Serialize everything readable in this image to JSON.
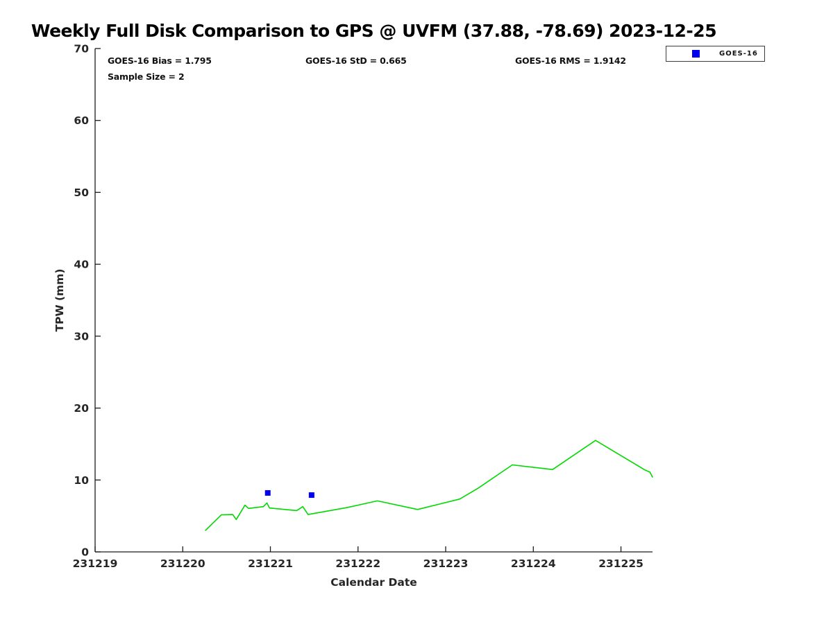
{
  "title": "Weekly Full Disk Comparison to GPS @ UVFM (37.88, -78.69) 2023-12-25",
  "stats": {
    "bias": "GOES-16 Bias = 1.795",
    "std": "GOES-16 StD = 0.665",
    "rms": "GOES-16 RMS = 1.9142",
    "sample_size": "Sample Size = 2"
  },
  "legend": {
    "position": "top-right",
    "entries": [
      {
        "label": "GOES-16",
        "marker": "square",
        "color": "#0000EE"
      }
    ]
  },
  "chart_data": {
    "type": "line",
    "title": "Weekly Full Disk Comparison to GPS @ UVFM (37.88, -78.69) 2023-12-25",
    "xlabel": "Calendar Date",
    "ylabel": "TPW (mm)",
    "xlim": [
      231219,
      231225.36
    ],
    "ylim": [
      0,
      70
    ],
    "xticks": [
      231219,
      231220,
      231221,
      231222,
      231223,
      231224,
      231225
    ],
    "yticks": [
      0,
      10,
      20,
      30,
      40,
      50,
      60,
      70
    ],
    "grid": false,
    "annotations": [
      "GOES-16 Bias = 1.795",
      "GOES-16 StD = 0.665",
      "GOES-16 RMS = 1.9142",
      "Sample Size = 2"
    ],
    "series": [
      {
        "name": "GPS",
        "type": "line",
        "color": "#00D900",
        "points": [
          [
            231220.26,
            3.0
          ],
          [
            231220.44,
            5.15
          ],
          [
            231220.57,
            5.2
          ],
          [
            231220.61,
            4.5
          ],
          [
            231220.71,
            6.5
          ],
          [
            231220.75,
            6.05
          ],
          [
            231220.92,
            6.3
          ],
          [
            231220.96,
            6.8
          ],
          [
            231220.99,
            6.1
          ],
          [
            231221.3,
            5.75
          ],
          [
            231221.37,
            6.3
          ],
          [
            231221.43,
            5.2
          ],
          [
            231221.87,
            6.15
          ],
          [
            231222.22,
            7.1
          ],
          [
            231222.68,
            5.9
          ],
          [
            231223.16,
            7.35
          ],
          [
            231223.37,
            8.85
          ],
          [
            231223.73,
            11.85
          ],
          [
            231223.76,
            12.1
          ],
          [
            231224.22,
            11.45
          ],
          [
            231224.71,
            15.5
          ],
          [
            231225.28,
            11.35
          ],
          [
            231225.33,
            11.1
          ],
          [
            231225.36,
            10.4
          ]
        ]
      },
      {
        "name": "GOES-16",
        "type": "scatter",
        "marker": "square",
        "marker_size": 8,
        "color": "#0000EE",
        "points": [
          [
            231220.97,
            8.2
          ],
          [
            231221.47,
            7.9
          ]
        ]
      }
    ]
  }
}
